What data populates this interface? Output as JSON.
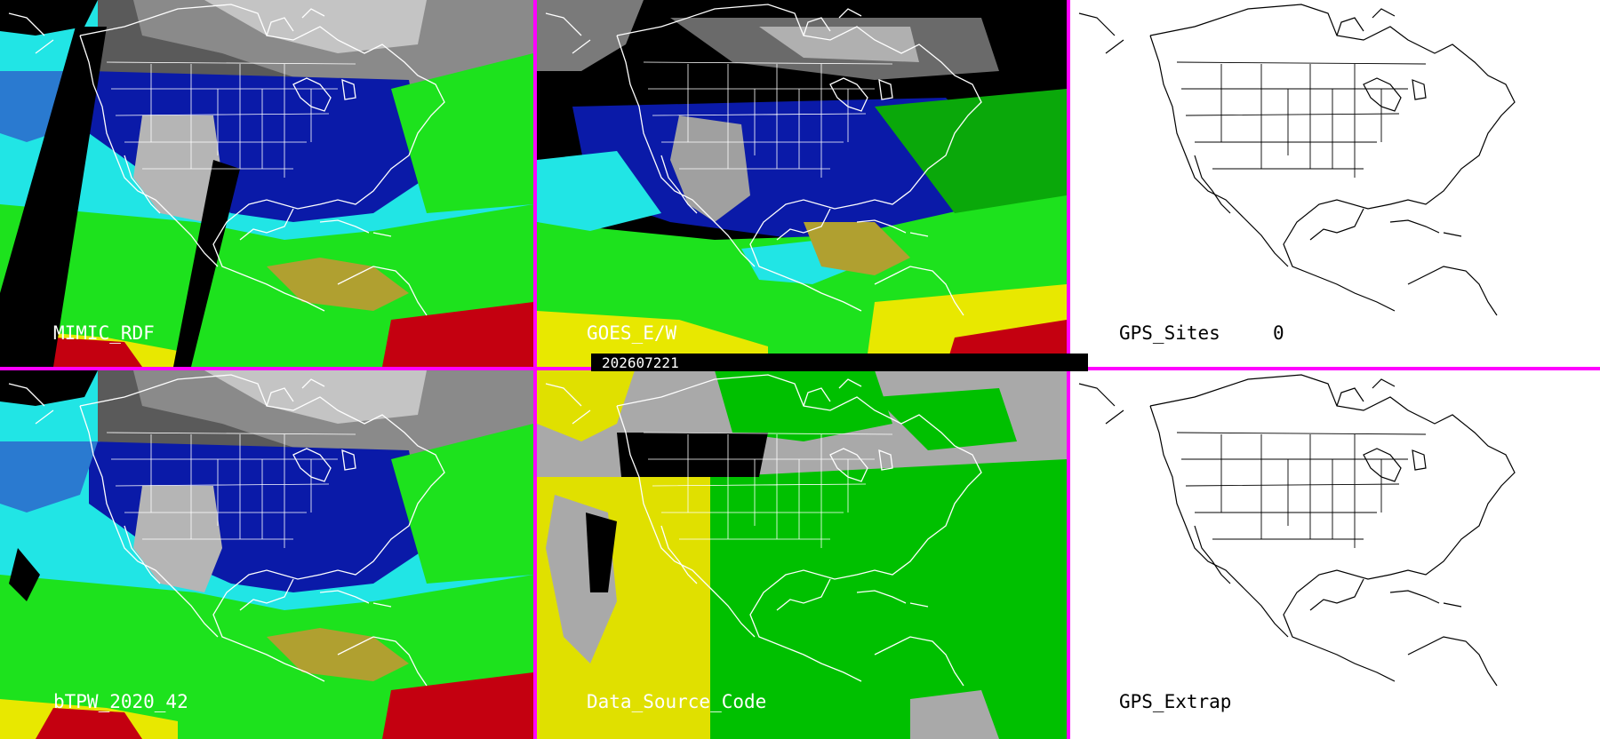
{
  "panels": {
    "top_left": {
      "label": "MIMIC_RDF"
    },
    "top_middle": {
      "label": "GOES_E/W"
    },
    "top_right": {
      "label": "GPS_Sites",
      "count": "0"
    },
    "bottom_left": {
      "label": "bTPW_2020_42"
    },
    "bottom_middle": {
      "label": "Data_Source_Code"
    },
    "bottom_right": {
      "label": "GPS_Extrap"
    }
  },
  "timestamp": "202607221",
  "colors": {
    "divider": "#ff00ff",
    "satellite_label": "#ffffff",
    "map_label": "#000000",
    "dry_gray": "#8a8a8a",
    "low_blue": "#0a1aa8",
    "mid_cyan": "#21e5e5",
    "high_green": "#1de21d",
    "higher_olive": "#b0a030",
    "very_high_yellow": "#e8e800",
    "max_red": "#c40010",
    "no_data": "#000000",
    "source_gray": "#a9a9a9",
    "source_green": "#00c000",
    "source_yellow": "#e0e000"
  },
  "icons": {
    "basemap": "north-america-outline-icon"
  }
}
